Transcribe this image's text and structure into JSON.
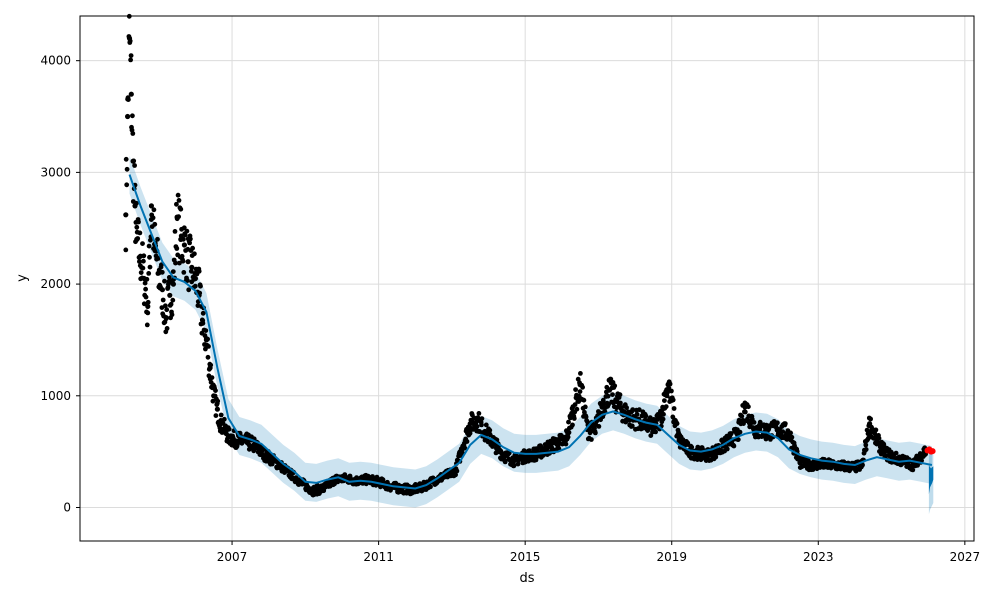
{
  "chart_data": {
    "type": "scatter",
    "title": "",
    "xlabel": "ds",
    "ylabel": "y",
    "xlim": [
      2002.85,
      2027.25
    ],
    "ylim": [
      -300,
      4400
    ],
    "x_ticks": [
      2007,
      2011,
      2015,
      2019,
      2023,
      2027
    ],
    "y_ticks": [
      0,
      1000,
      2000,
      3000,
      4000
    ],
    "x_tick_labels": [
      "2007",
      "2011",
      "2015",
      "2019",
      "2023",
      "2027"
    ],
    "y_tick_labels": [
      "0",
      "1000",
      "2000",
      "3000",
      "4000"
    ],
    "grid": true,
    "colors": {
      "observed": "#000000",
      "forecast_line": "#0072B2",
      "uncertainty_band": "#0072B2",
      "highlight": "#ff0000"
    },
    "forecast_line": {
      "x": [
        2004.2,
        2004.5,
        2004.8,
        2005.1,
        2005.4,
        2005.7,
        2006.0,
        2006.3,
        2006.6,
        2006.9,
        2007.2,
        2007.5,
        2007.8,
        2008.1,
        2008.4,
        2008.7,
        2009.0,
        2009.3,
        2009.6,
        2009.9,
        2010.2,
        2010.5,
        2010.8,
        2011.1,
        2011.4,
        2011.7,
        2012.0,
        2012.3,
        2012.6,
        2012.9,
        2013.2,
        2013.5,
        2013.8,
        2014.1,
        2014.4,
        2014.7,
        2015.0,
        2015.3,
        2015.6,
        2015.9,
        2016.2,
        2016.5,
        2016.8,
        2017.1,
        2017.4,
        2017.7,
        2018.0,
        2018.3,
        2018.6,
        2018.9,
        2019.2,
        2019.5,
        2019.8,
        2020.1,
        2020.4,
        2020.7,
        2021.0,
        2021.3,
        2021.6,
        2021.9,
        2022.2,
        2022.5,
        2022.8,
        2023.1,
        2023.4,
        2023.7,
        2024.0,
        2024.3,
        2024.6,
        2024.9,
        2025.2,
        2025.5,
        2025.8,
        2026.1
      ],
      "y": [
        2980,
        2700,
        2450,
        2200,
        2060,
        2020,
        1940,
        1750,
        1250,
        800,
        640,
        610,
        570,
        480,
        390,
        320,
        230,
        220,
        250,
        270,
        230,
        240,
        230,
        210,
        190,
        180,
        170,
        200,
        260,
        330,
        400,
        560,
        650,
        610,
        540,
        490,
        480,
        480,
        490,
        500,
        540,
        640,
        760,
        830,
        860,
        830,
        790,
        760,
        740,
        650,
        560,
        510,
        500,
        520,
        560,
        620,
        660,
        680,
        670,
        620,
        520,
        470,
        440,
        420,
        410,
        390,
        380,
        420,
        450,
        430,
        410,
        420,
        400,
        380
      ]
    },
    "uncertainty_band_halfwidth": 170,
    "forecast_tail": {
      "x": [
        2026.02,
        2026.05,
        2026.08,
        2026.11,
        2026.14
      ],
      "y_upper": [
        380,
        360,
        350,
        360,
        370
      ],
      "y_lower": [
        120,
        180,
        200,
        220,
        250
      ]
    },
    "forecast_tail_band": {
      "y_upper": [
        560,
        540,
        520,
        520,
        520
      ],
      "y_lower": [
        -60,
        -20,
        0,
        20,
        40
      ]
    },
    "highlight_points": {
      "x": [
        2025.98,
        2026.03,
        2026.08,
        2026.12
      ],
      "y": [
        510,
        520,
        500,
        505
      ]
    },
    "observed_anchor_points": {
      "x": [
        2004.1,
        2004.15,
        2004.2,
        2004.25,
        2004.3,
        2004.35,
        2004.4,
        2004.5,
        2004.6,
        2004.7,
        2004.8,
        2004.9,
        2005.0,
        2005.1,
        2005.2,
        2005.3,
        2005.4,
        2005.5,
        2005.6,
        2005.7,
        2005.8,
        2005.9,
        2006.0,
        2006.1,
        2006.2,
        2006.3,
        2006.4,
        2006.5,
        2006.6,
        2006.7,
        2006.8,
        2006.9,
        2007.0,
        2007.2,
        2007.4,
        2007.6,
        2007.8,
        2008.0,
        2008.3,
        2008.6,
        2008.9,
        2009.2,
        2009.5,
        2009.8,
        2010.1,
        2010.4,
        2010.7,
        2011.0,
        2011.3,
        2011.6,
        2011.9,
        2012.2,
        2012.5,
        2012.8,
        2013.1,
        2013.3,
        2013.5,
        2013.7,
        2013.9,
        2014.1,
        2014.4,
        2014.7,
        2015.0,
        2015.3,
        2015.6,
        2015.9,
        2016.1,
        2016.3,
        2016.5,
        2016.7,
        2016.9,
        2017.1,
        2017.3,
        2017.5,
        2017.7,
        2017.9,
        2018.1,
        2018.3,
        2018.5,
        2018.7,
        2018.9,
        2019.2,
        2019.5,
        2019.8,
        2020.0,
        2020.2,
        2020.4,
        2020.6,
        2020.8,
        2021.0,
        2021.3,
        2021.6,
        2021.9,
        2022.2,
        2022.5,
        2022.8,
        2023.1,
        2023.4,
        2023.7,
        2024.0,
        2024.2,
        2024.4,
        2024.6,
        2024.8,
        2025.0,
        2025.3,
        2025.6,
        2025.9
      ],
      "y": [
        2620,
        3500,
        4200,
        3700,
        3100,
        2700,
        2400,
        2250,
        2050,
        1800,
        2700,
        2300,
        2100,
        1950,
        1700,
        1900,
        2000,
        2600,
        2400,
        2350,
        2200,
        2150,
        2050,
        1900,
        1650,
        1500,
        1250,
        1000,
        880,
        750,
        700,
        640,
        620,
        600,
        590,
        560,
        500,
        450,
        380,
        300,
        220,
        150,
        170,
        250,
        260,
        240,
        250,
        230,
        190,
        170,
        160,
        180,
        240,
        280,
        330,
        550,
        750,
        780,
        680,
        600,
        470,
        420,
        460,
        480,
        530,
        580,
        600,
        850,
        1100,
        700,
        680,
        900,
        1050,
        950,
        850,
        800,
        790,
        750,
        700,
        800,
        1100,
        600,
        500,
        480,
        470,
        500,
        550,
        600,
        650,
        900,
        700,
        680,
        700,
        660,
        400,
        380,
        390,
        380,
        370,
        360,
        380,
        750,
        600,
        500,
        450,
        420,
        380,
        500
      ]
    }
  }
}
